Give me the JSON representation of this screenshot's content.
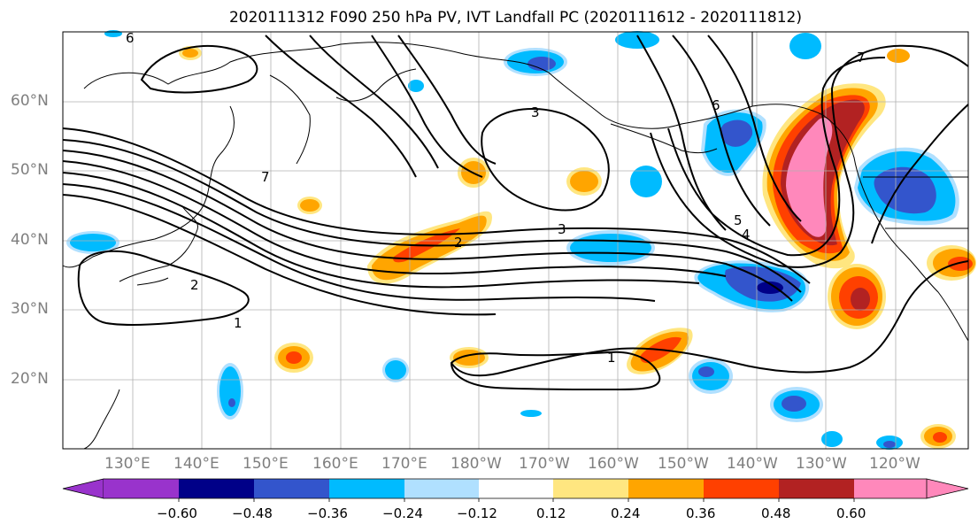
{
  "title": "2020111312 F090 250 hPa PV, IVT Landfall PC (2020111612 - 2020111812)",
  "lat_labels": [
    "60°N",
    "50°N",
    "40°N",
    "30°N",
    "20°N"
  ],
  "lon_labels": [
    "130°E",
    "140°E",
    "150°E",
    "160°E",
    "170°E",
    "180°W",
    "170°W",
    "160°W",
    "150°W",
    "140°W",
    "130°W",
    "120°W"
  ],
  "colorbar": {
    "tick_labels": [
      "−0.60",
      "−0.48",
      "−0.36",
      "−0.24",
      "−0.12",
      "0.12",
      "0.24",
      "0.36",
      "0.48",
      "0.60"
    ],
    "colors": [
      "#9933cc",
      "#000088",
      "#3355cc",
      "#00bbff",
      "#b0e0ff",
      "#ffffff",
      "#ffe680",
      "#ffa500",
      "#ff4000",
      "#b22222",
      "#ff88bb"
    ]
  },
  "contour_labels": [
    "1",
    "2",
    "3",
    "4",
    "5",
    "6",
    "7"
  ],
  "colors": {
    "pos_pink": "#ff88bb",
    "pos_darkred": "#b22222",
    "pos_red": "#ff4000",
    "pos_orange": "#ffa500",
    "pos_yellow": "#ffe680",
    "neg_light": "#b0e0ff",
    "neg_cyan": "#00bbff",
    "neg_blue": "#3355cc",
    "neg_navy": "#000088"
  }
}
